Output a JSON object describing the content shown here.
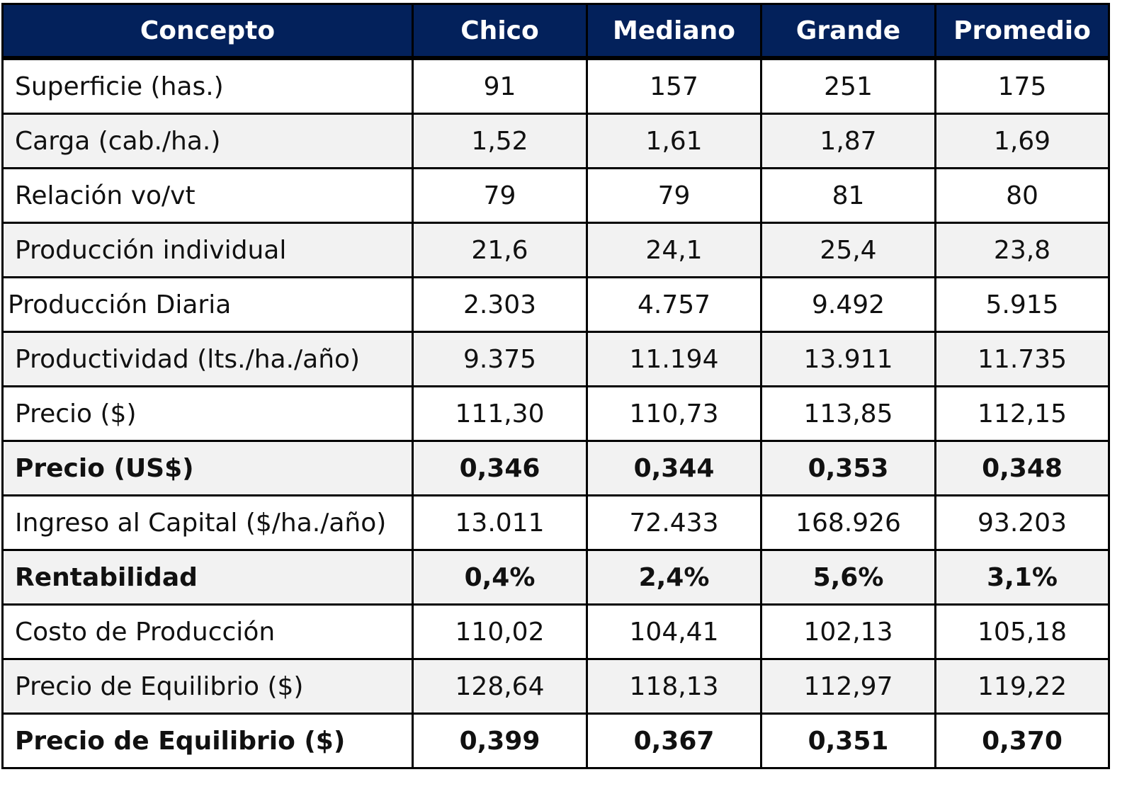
{
  "table": {
    "headers": [
      "Concepto",
      "Chico",
      "Mediano",
      "Grande",
      "Promedio"
    ],
    "rows": [
      {
        "label": "Superficie (has.)",
        "values": [
          "91",
          "157",
          "251",
          "175"
        ]
      },
      {
        "label": "Carga (cab./ha.)",
        "values": [
          "1,52",
          "1,61",
          "1,87",
          "1,69"
        ]
      },
      {
        "label": "Relación vo/vt",
        "values": [
          "79",
          "79",
          "81",
          "80"
        ]
      },
      {
        "label": "Producción individual",
        "values": [
          "21,6",
          "24,1",
          "25,4",
          "23,8"
        ]
      },
      {
        "label": "Producción Diaria",
        "values": [
          "2.303",
          "4.757",
          "9.492",
          "5.915"
        ]
      },
      {
        "label": "Productividad (lts./ha./año)",
        "values": [
          "9.375",
          "11.194",
          "13.911",
          "11.735"
        ]
      },
      {
        "label": "Precio ($)",
        "values": [
          "111,30",
          "110,73",
          "113,85",
          "112,15"
        ]
      },
      {
        "label": "Precio (US$)",
        "values": [
          "0,346",
          "0,344",
          "0,353",
          "0,348"
        ]
      },
      {
        "label": "Ingreso al Capital ($/ha./año)",
        "values": [
          "13.011",
          "72.433",
          "168.926",
          "93.203"
        ]
      },
      {
        "label": "Rentabilidad",
        "values": [
          "0,4%",
          "2,4%",
          "5,6%",
          "3,1%"
        ]
      },
      {
        "label": "Costo de Producción",
        "values": [
          "110,02",
          "104,41",
          "102,13",
          "105,18"
        ]
      },
      {
        "label": "Precio de Equilibrio ($)",
        "values": [
          "128,64",
          "118,13",
          "112,97",
          "119,22"
        ]
      },
      {
        "label": "Precio de Equilibrio ($)",
        "values": [
          "0,399",
          "0,367",
          "0,351",
          "0,370"
        ]
      }
    ]
  },
  "colors": {
    "header_background": "#03215b",
    "header_text": "#ffffff",
    "alternate_row": "#f2f2f2",
    "border": "#000000"
  }
}
